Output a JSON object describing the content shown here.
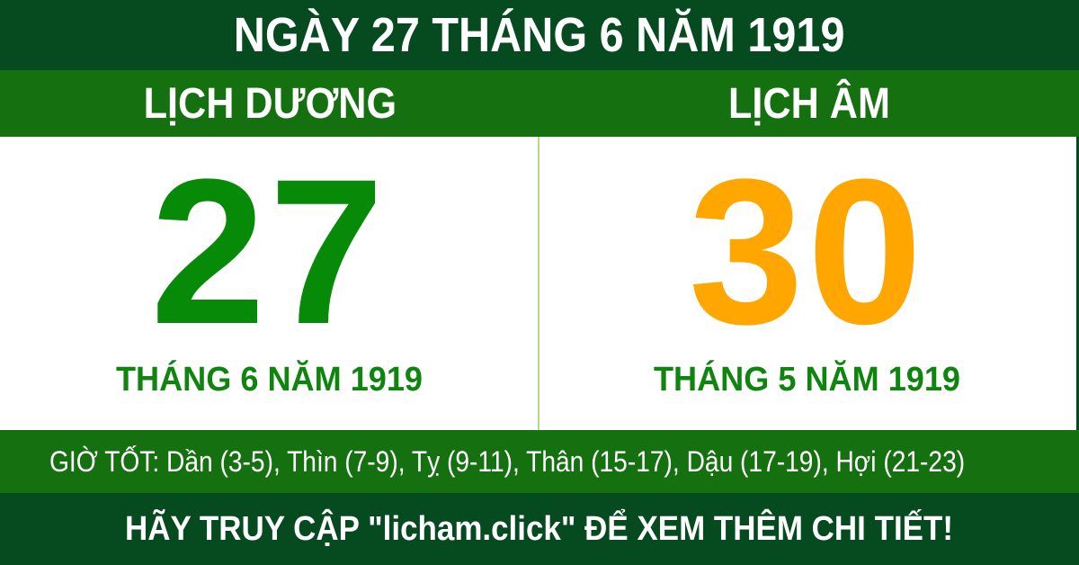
{
  "header": {
    "title": "NGÀY 27 THÁNG 6 NĂM 1919"
  },
  "calendars": {
    "solar": {
      "label": "LỊCH DƯƠNG",
      "day": "27",
      "month_year": "THÁNG 6 NĂM 1919"
    },
    "lunar": {
      "label": "LỊCH ÂM",
      "day": "30",
      "month_year": "THÁNG 5 NĂM 1919"
    }
  },
  "good_hours": {
    "text": "GIỜ TỐT: Dần (3-5), Thìn (7-9), Tỵ (9-11), Thân (15-17), Dậu (17-19), Hợi (21-23)"
  },
  "footer": {
    "text": "HÃY TRUY CẬP \"licham.click\" ĐỂ XEM THÊM CHI TIẾT!"
  },
  "colors": {
    "dark_green": "#064a20",
    "bright_green": "#157010",
    "solar_day_green": "#078a07",
    "lunar_day_orange": "#ffa600",
    "month_text_green": "#0f850f",
    "divider_light_green": "#b2dc82",
    "white": "#ffffff"
  }
}
